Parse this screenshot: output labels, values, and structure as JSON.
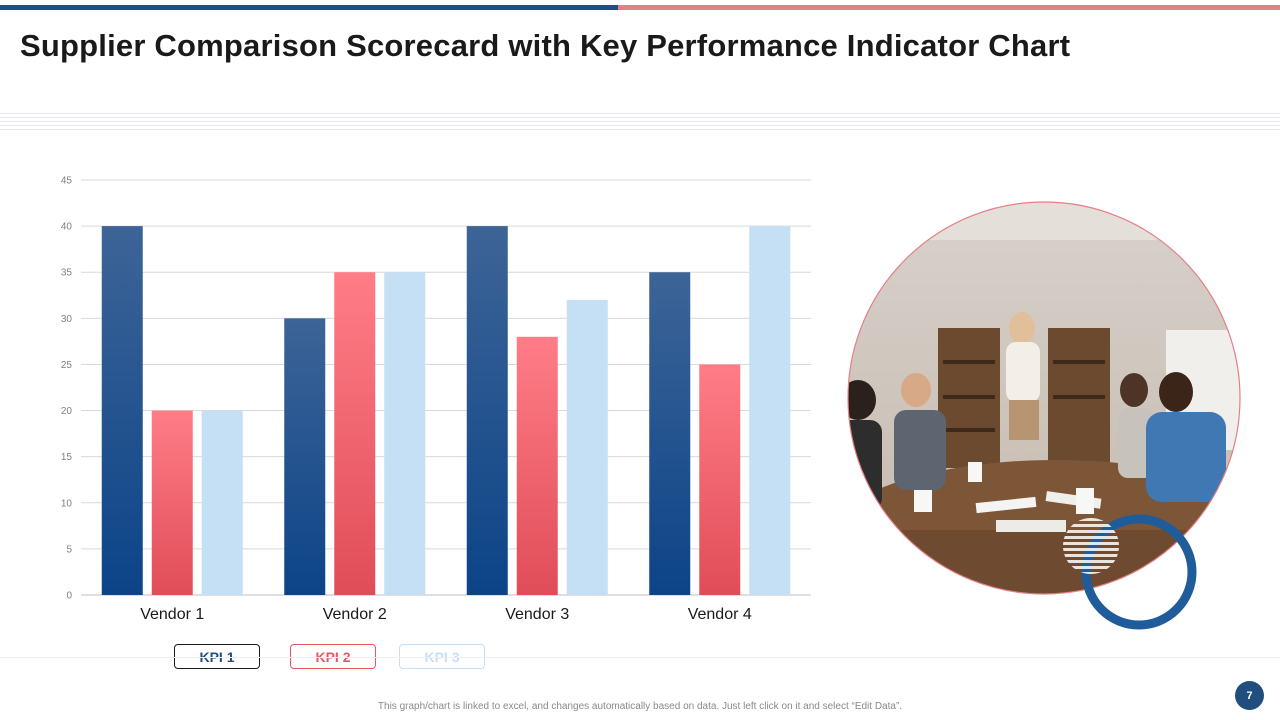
{
  "slide": {
    "title": "Supplier Comparison Scorecard with Key Performance Indicator Chart",
    "footnote": "This graph/chart is linked to excel, and changes automatically based on data. Just left click on it and select “Edit Data”.",
    "page_number": "7"
  },
  "colors": {
    "kpi1": "#1f4e7f",
    "kpi2": "#e8565f",
    "kpi3": "#c5dff5",
    "accent_blue": "#1f4e7f",
    "accent_pink": "#e57f85"
  },
  "legend": [
    {
      "label": "KPI 1",
      "color": "#1f4e7f"
    },
    {
      "label": "KPI 2",
      "color": "#e8565f"
    },
    {
      "label": "KPI 3",
      "color": "#c5dff5"
    }
  ],
  "photo": {
    "icon": "meeting-photo"
  },
  "chart_data": {
    "type": "bar",
    "categories": [
      "Vendor 1",
      "Vendor 2",
      "Vendor 3",
      "Vendor 4"
    ],
    "series": [
      {
        "name": "KPI 1",
        "values": [
          40,
          30,
          40,
          35
        ]
      },
      {
        "name": "KPI 2",
        "values": [
          20,
          35,
          28,
          25
        ]
      },
      {
        "name": "KPI 3",
        "values": [
          20,
          35,
          32,
          40
        ]
      }
    ],
    "ylim": [
      0,
      45
    ],
    "yticks": [
      "0",
      "5",
      "10",
      "15",
      "20",
      "25",
      "30",
      "35",
      "40",
      "45"
    ],
    "grid": true,
    "legend_position": "bottom"
  }
}
